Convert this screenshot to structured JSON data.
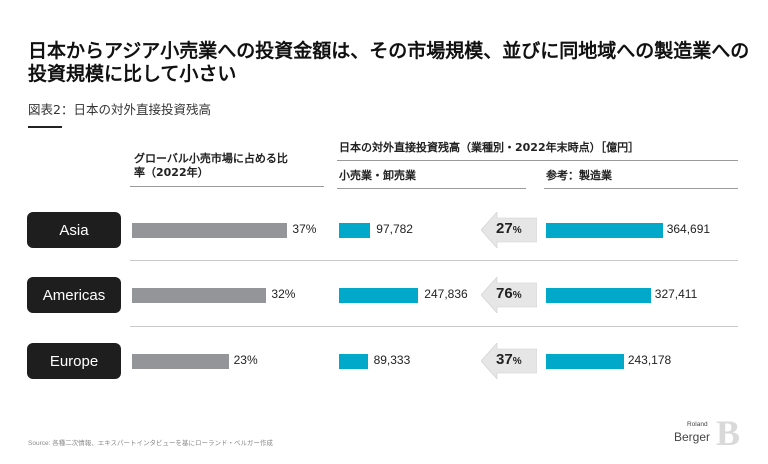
{
  "title": "日本からアジア小売業への投資金額は、その市場規模、並びに同地域への製造業への投資規模に比して小さい",
  "subtitle": "図表2：日本の対外直接投資残高",
  "headers": {
    "market_share": "グローバル小売市場に占める比率（2022年）",
    "fdi_group": "日本の対外直接投資残高（業種別・2022年末時点）［億円］",
    "retail": "小売業・卸売業",
    "manufacturing": "参考：製造業"
  },
  "source": "Source: 各種二次情報、エキスパートインタビューを基にローランド・ベルガー作成",
  "logo": {
    "top": "Roland",
    "bottom": "Berger",
    "mark": "B"
  },
  "colors": {
    "share_bar": "#939598",
    "invest_bar": "#00a9c9",
    "region_box": "#1e1e1e",
    "arrow": "#e6e6e6"
  },
  "chart_data": {
    "type": "bar",
    "categories": [
      "Asia",
      "Americas",
      "Europe"
    ],
    "series": [
      {
        "name": "グローバル小売市場に占める比率（2022年）",
        "values": [
          37,
          32,
          23
        ],
        "labels": [
          "37%",
          "32%",
          "23%"
        ],
        "unit": "%"
      },
      {
        "name": "小売業・卸売業",
        "values": [
          97782,
          247836,
          89333
        ],
        "labels": [
          "97,782",
          "247,836",
          "89,333"
        ],
        "unit": "億円"
      },
      {
        "name": "参考：製造業",
        "values": [
          364691,
          327411,
          243178
        ],
        "labels": [
          "364,691",
          "327,411",
          "243,178"
        ],
        "unit": "億円"
      }
    ],
    "ratios": [
      {
        "num": "27",
        "pct": "%"
      },
      {
        "num": "76",
        "pct": "%"
      },
      {
        "num": "37",
        "pct": "%"
      }
    ]
  }
}
